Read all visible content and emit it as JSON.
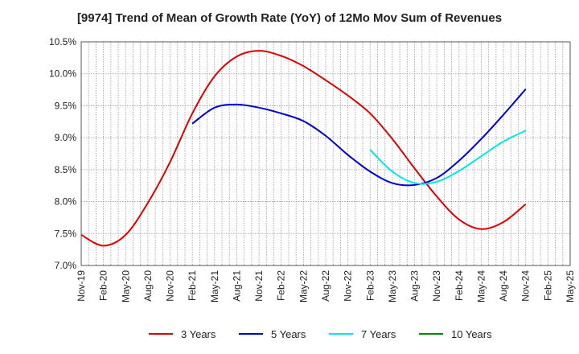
{
  "chart_data": {
    "type": "line",
    "title": "[9974]  Trend of Mean of Growth Rate (YoY) of 12Mo Mov Sum of Revenues",
    "xlabel": "",
    "ylabel": "",
    "categories": [
      "Nov-19",
      "Feb-20",
      "May-20",
      "Aug-20",
      "Nov-20",
      "Feb-21",
      "May-21",
      "Aug-21",
      "Nov-21",
      "Feb-22",
      "May-22",
      "Aug-22",
      "Nov-22",
      "Feb-23",
      "May-23",
      "Aug-23",
      "Nov-23",
      "Feb-24",
      "May-24",
      "Aug-24",
      "Nov-24",
      "Feb-25",
      "May-25"
    ],
    "y_ticks": [
      "7.0%",
      "7.5%",
      "8.0%",
      "8.5%",
      "9.0%",
      "9.5%",
      "10.0%",
      "10.5%"
    ],
    "ylim": [
      7.0,
      10.5
    ],
    "grid": true,
    "series": [
      {
        "name": "3 Years",
        "color": "#dd0000",
        "values": [
          7.48,
          7.31,
          7.48,
          7.98,
          8.62,
          9.38,
          9.96,
          10.27,
          10.36,
          10.28,
          10.12,
          9.9,
          9.66,
          9.38,
          8.98,
          8.52,
          8.08,
          7.72,
          7.57,
          7.68,
          7.96,
          null,
          null
        ]
      },
      {
        "name": "5 Years",
        "color": "#0000cc",
        "values": [
          null,
          null,
          null,
          null,
          null,
          9.22,
          9.47,
          9.52,
          9.47,
          9.38,
          9.26,
          9.03,
          8.73,
          8.47,
          8.29,
          8.26,
          8.37,
          8.64,
          8.98,
          9.36,
          9.76,
          null,
          null
        ]
      },
      {
        "name": "7 Years",
        "color": "#00e5e5",
        "values": [
          null,
          null,
          null,
          null,
          null,
          null,
          null,
          null,
          null,
          null,
          null,
          null,
          null,
          8.81,
          8.47,
          8.29,
          8.31,
          8.48,
          8.71,
          8.94,
          9.11,
          null,
          null
        ]
      },
      {
        "name": "10 Years",
        "color": "#008800",
        "values": [
          null,
          null,
          null,
          null,
          null,
          null,
          null,
          null,
          null,
          null,
          null,
          null,
          null,
          null,
          null,
          null,
          null,
          null,
          null,
          null,
          null,
          null,
          null
        ]
      }
    ]
  }
}
